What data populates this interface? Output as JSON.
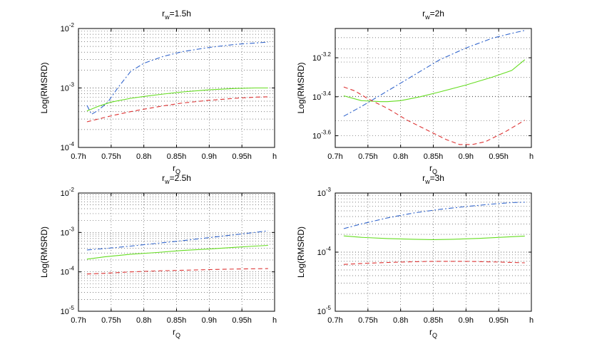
{
  "chart_data": [
    {
      "type": "line",
      "title_base": "r",
      "title_sub": "w",
      "title_tail": "=1.5h",
      "xlabel_base": "r",
      "xlabel_sub": "Q",
      "ylabel": "Log(RMSRD)",
      "xticks": [
        "0.7h",
        "0.75h",
        "0.8h",
        "0.85h",
        "0.9h",
        "0.95h",
        "h"
      ],
      "xlim": [
        0.7,
        1.0
      ],
      "yscale": "log",
      "ylim_exp": [
        -4,
        -2
      ],
      "ytick_exps": [
        -4,
        -3,
        -2
      ],
      "ytick_labels": [
        {
          "base": "10",
          "exp": "-4"
        },
        {
          "base": "10",
          "exp": "-3"
        },
        {
          "base": "10",
          "exp": "-2"
        }
      ],
      "grid": "dotted",
      "series": [
        {
          "name": "blue dash-dot",
          "color": "#3366cc",
          "dash": "7,3,2,3",
          "x": [
            0.713,
            0.72,
            0.73,
            0.745,
            0.76,
            0.78,
            0.8,
            0.83,
            0.86,
            0.9,
            0.94,
            0.97,
            0.99
          ],
          "y": [
            0.00051,
            0.00036,
            0.00042,
            0.00058,
            0.001,
            0.0019,
            0.0026,
            0.0034,
            0.0041,
            0.0048,
            0.0054,
            0.0057,
            0.0059
          ]
        },
        {
          "name": "green solid",
          "color": "#66dd22",
          "dash": "",
          "x": [
            0.713,
            0.73,
            0.75,
            0.78,
            0.8,
            0.83,
            0.86,
            0.9,
            0.94,
            0.97,
            0.99
          ],
          "y": [
            0.00041,
            0.00049,
            0.00058,
            0.00067,
            0.00072,
            0.00079,
            0.00086,
            0.00093,
            0.00098,
            0.001,
            0.001
          ]
        },
        {
          "name": "red dashed",
          "color": "#dd3333",
          "dash": "6,4",
          "x": [
            0.713,
            0.73,
            0.75,
            0.78,
            0.8,
            0.83,
            0.86,
            0.9,
            0.94,
            0.97,
            0.99
          ],
          "y": [
            0.00027,
            0.0003,
            0.00034,
            0.0004,
            0.00044,
            0.0005,
            0.00056,
            0.00062,
            0.00067,
            0.0007,
            0.00071
          ]
        }
      ]
    },
    {
      "type": "line",
      "title_base": "r",
      "title_sub": "w",
      "title_tail": "=2h",
      "xlabel_base": "r",
      "xlabel_sub": "Q",
      "ylabel": "Log(RMSRD)",
      "xticks": [
        "0.7h",
        "0.75h",
        "0.8h",
        "0.85h",
        "0.9h",
        "0.95h",
        "h"
      ],
      "xlim": [
        0.7,
        1.0
      ],
      "yscale": "log",
      "ylim_exp": [
        -3.66,
        -3.05
      ],
      "ytick_exps": [
        -3.6,
        -3.4,
        -3.2
      ],
      "ytick_labels": [
        {
          "base": "10",
          "exp": "-3.6"
        },
        {
          "base": "10",
          "exp": "-3.4"
        },
        {
          "base": "10",
          "exp": "-3.2"
        }
      ],
      "grid": "dotted",
      "series": [
        {
          "name": "blue dash-dot",
          "color": "#3366cc",
          "dash": "7,3,2,3",
          "x": [
            0.713,
            0.74,
            0.77,
            0.8,
            0.83,
            0.86,
            0.9,
            0.94,
            0.97,
            0.99
          ],
          "yexp": [
            -3.5,
            -3.45,
            -3.39,
            -3.33,
            -3.27,
            -3.21,
            -3.15,
            -3.1,
            -3.075,
            -3.06
          ]
        },
        {
          "name": "green solid",
          "color": "#66dd22",
          "dash": "",
          "x": [
            0.713,
            0.74,
            0.77,
            0.78,
            0.8,
            0.83,
            0.86,
            0.9,
            0.94,
            0.97,
            0.99
          ],
          "yexp": [
            -3.395,
            -3.42,
            -3.425,
            -3.425,
            -3.42,
            -3.4,
            -3.375,
            -3.34,
            -3.3,
            -3.265,
            -3.21
          ]
        },
        {
          "name": "red dashed",
          "color": "#dd3333",
          "dash": "6,4",
          "x": [
            0.713,
            0.73,
            0.75,
            0.78,
            0.81,
            0.84,
            0.87,
            0.89,
            0.91,
            0.93,
            0.96,
            0.99
          ],
          "yexp": [
            -3.35,
            -3.37,
            -3.41,
            -3.46,
            -3.52,
            -3.57,
            -3.62,
            -3.645,
            -3.645,
            -3.63,
            -3.58,
            -3.52
          ]
        }
      ]
    },
    {
      "type": "line",
      "title_base": "r",
      "title_sub": "w",
      "title_tail": "=2.5h",
      "xlabel_base": "r",
      "xlabel_sub": "Q",
      "ylabel": "Log(RMSRD)",
      "xticks": [
        "0.7h",
        "0.75h",
        "0.8h",
        "0.85h",
        "0.9h",
        "0.95h",
        "h"
      ],
      "xlim": [
        0.7,
        1.0
      ],
      "yscale": "log",
      "ylim_exp": [
        -5,
        -2
      ],
      "ytick_exps": [
        -5,
        -4,
        -3,
        -2
      ],
      "ytick_labels": [
        {
          "base": "10",
          "exp": "-5"
        },
        {
          "base": "10",
          "exp": "-4"
        },
        {
          "base": "10",
          "exp": "-3"
        },
        {
          "base": "10",
          "exp": "-2"
        }
      ],
      "grid": "dotted",
      "series": [
        {
          "name": "blue dash-dot",
          "color": "#3366cc",
          "dash": "7,3,2,3",
          "x": [
            0.713,
            0.74,
            0.78,
            0.82,
            0.86,
            0.9,
            0.94,
            0.97,
            0.99
          ],
          "y": [
            0.00036,
            0.00039,
            0.00045,
            0.00053,
            0.00062,
            0.00074,
            0.00088,
            0.001,
            0.0011
          ]
        },
        {
          "name": "green solid",
          "color": "#66dd22",
          "dash": "",
          "x": [
            0.713,
            0.74,
            0.78,
            0.82,
            0.86,
            0.9,
            0.94,
            0.97,
            0.99
          ],
          "y": [
            0.00021,
            0.00024,
            0.00028,
            0.00031,
            0.00035,
            0.00038,
            0.00042,
            0.00045,
            0.00047
          ]
        },
        {
          "name": "red dashed",
          "color": "#dd3333",
          "dash": "6,4",
          "x": [
            0.713,
            0.74,
            0.78,
            0.82,
            0.86,
            0.9,
            0.94,
            0.97,
            0.99
          ],
          "y": [
            8.8e-05,
            9.2e-05,
            0.0001,
            0.000106,
            0.00011,
            0.000114,
            0.000118,
            0.00012,
            0.000121
          ]
        }
      ]
    },
    {
      "type": "line",
      "title_base": "r",
      "title_sub": "w",
      "title_tail": "=3h",
      "xlabel_base": "r",
      "xlabel_sub": "Q",
      "ylabel": "Log(RMSRD)",
      "xticks": [
        "0.7h",
        "0.75h",
        "0.8h",
        "0.85h",
        "0.9h",
        "0.95h",
        "h"
      ],
      "xlim": [
        0.7,
        1.0
      ],
      "yscale": "log",
      "ylim_exp": [
        -5,
        -3
      ],
      "ytick_exps": [
        -5,
        -4,
        -3
      ],
      "ytick_labels": [
        {
          "base": "10",
          "exp": "-5"
        },
        {
          "base": "10",
          "exp": "-4"
        },
        {
          "base": "10",
          "exp": "-3"
        }
      ],
      "grid": "dotted",
      "series": [
        {
          "name": "blue dash-dot",
          "color": "#3366cc",
          "dash": "7,3,2,3",
          "x": [
            0.713,
            0.74,
            0.78,
            0.82,
            0.86,
            0.9,
            0.94,
            0.97,
            0.99
          ],
          "y": [
            0.00025,
            0.0003,
            0.00038,
            0.00046,
            0.00053,
            0.00059,
            0.00065,
            0.00069,
            0.0007
          ]
        },
        {
          "name": "green solid",
          "color": "#66dd22",
          "dash": "",
          "x": [
            0.713,
            0.74,
            0.78,
            0.82,
            0.85,
            0.88,
            0.92,
            0.96,
            0.99
          ],
          "y": [
            0.000188,
            0.000178,
            0.00017,
            0.000165,
            0.000163,
            0.000165,
            0.000171,
            0.00018,
            0.000187
          ]
        },
        {
          "name": "red dashed",
          "color": "#dd3333",
          "dash": "6,4",
          "x": [
            0.713,
            0.75,
            0.8,
            0.85,
            0.9,
            0.95,
            0.99
          ],
          "y": [
            6.2e-05,
            6.5e-05,
            6.8e-05,
            7e-05,
            7e-05,
            6.8e-05,
            6.6e-05
          ]
        }
      ]
    }
  ]
}
